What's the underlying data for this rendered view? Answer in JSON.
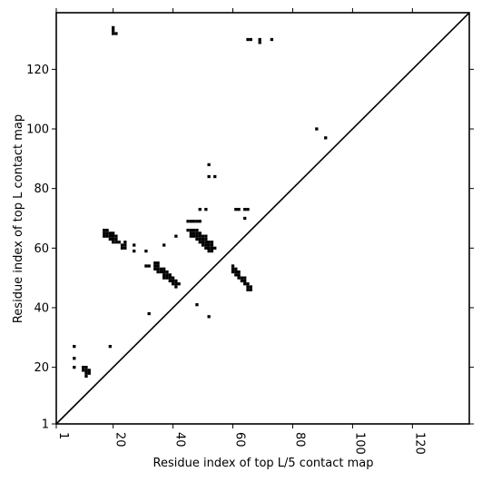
{
  "chart_data": {
    "type": "heatmap",
    "title": "",
    "xlabel": "Residue index of top L/5 contact map",
    "ylabel": "Residue index of top L contact map",
    "xlim": [
      1,
      139
    ],
    "ylim": [
      1,
      139
    ],
    "xticks": [
      "1",
      "20",
      "40",
      "60",
      "80",
      "100",
      "120"
    ],
    "yticks": [
      "1",
      "20",
      "40",
      "60",
      "80",
      "100",
      "120"
    ],
    "xtick_values": [
      1,
      20,
      40,
      60,
      80,
      100,
      120
    ],
    "ytick_values": [
      1,
      20,
      40,
      60,
      80,
      100,
      120
    ],
    "x_ticklabel_rotation": "vertical",
    "diagonal": true,
    "grid": false,
    "cell_color": "#000000",
    "contacts": [
      [
        20,
        134
      ],
      [
        20,
        133
      ],
      [
        20,
        132
      ],
      [
        21,
        132
      ],
      [
        66,
        130
      ],
      [
        65,
        130
      ],
      [
        69,
        130
      ],
      [
        69,
        129
      ],
      [
        73,
        130
      ],
      [
        88,
        100
      ],
      [
        91,
        97
      ],
      [
        52,
        88
      ],
      [
        52,
        84
      ],
      [
        54,
        84
      ],
      [
        49,
        73
      ],
      [
        51,
        73
      ],
      [
        61,
        73
      ],
      [
        62,
        73
      ],
      [
        64,
        73
      ],
      [
        65,
        73
      ],
      [
        64,
        70
      ],
      [
        45,
        69
      ],
      [
        46,
        69
      ],
      [
        47,
        69
      ],
      [
        48,
        69
      ],
      [
        49,
        69
      ],
      [
        17,
        66
      ],
      [
        18,
        66
      ],
      [
        17,
        65
      ],
      [
        18,
        65
      ],
      [
        19,
        65
      ],
      [
        20,
        65
      ],
      [
        17,
        64
      ],
      [
        18,
        64
      ],
      [
        19,
        64
      ],
      [
        20,
        64
      ],
      [
        21,
        64
      ],
      [
        19,
        63
      ],
      [
        20,
        63
      ],
      [
        21,
        63
      ],
      [
        20,
        62
      ],
      [
        21,
        62
      ],
      [
        22,
        62
      ],
      [
        23,
        61
      ],
      [
        24,
        61
      ],
      [
        24,
        62
      ],
      [
        24,
        60
      ],
      [
        23,
        60
      ],
      [
        27,
        61
      ],
      [
        27,
        59
      ],
      [
        31,
        59
      ],
      [
        45,
        66
      ],
      [
        46,
        66
      ],
      [
        47,
        66
      ],
      [
        48,
        66
      ],
      [
        46,
        65
      ],
      [
        47,
        65
      ],
      [
        48,
        65
      ],
      [
        49,
        65
      ],
      [
        46,
        64
      ],
      [
        47,
        64
      ],
      [
        48,
        64
      ],
      [
        49,
        64
      ],
      [
        50,
        64
      ],
      [
        51,
        64
      ],
      [
        48,
        63
      ],
      [
        49,
        63
      ],
      [
        50,
        63
      ],
      [
        51,
        63
      ],
      [
        49,
        62
      ],
      [
        50,
        62
      ],
      [
        51,
        62
      ],
      [
        52,
        62
      ],
      [
        53,
        62
      ],
      [
        50,
        61
      ],
      [
        51,
        61
      ],
      [
        52,
        61
      ],
      [
        53,
        61
      ],
      [
        51,
        60
      ],
      [
        52,
        60
      ],
      [
        53,
        60
      ],
      [
        54,
        60
      ],
      [
        52,
        59
      ],
      [
        53,
        59
      ],
      [
        37,
        61
      ],
      [
        41,
        64
      ],
      [
        31,
        54
      ],
      [
        32,
        54
      ],
      [
        34,
        55
      ],
      [
        35,
        55
      ],
      [
        34,
        54
      ],
      [
        35,
        54
      ],
      [
        34,
        53
      ],
      [
        35,
        53
      ],
      [
        36,
        53
      ],
      [
        37,
        53
      ],
      [
        35,
        52
      ],
      [
        36,
        52
      ],
      [
        37,
        52
      ],
      [
        38,
        52
      ],
      [
        37,
        51
      ],
      [
        38,
        51
      ],
      [
        39,
        51
      ],
      [
        37,
        50
      ],
      [
        38,
        50
      ],
      [
        39,
        50
      ],
      [
        40,
        50
      ],
      [
        39,
        49
      ],
      [
        40,
        49
      ],
      [
        41,
        49
      ],
      [
        40,
        48
      ],
      [
        41,
        48
      ],
      [
        42,
        48
      ],
      [
        41,
        47
      ],
      [
        60,
        54
      ],
      [
        60,
        53
      ],
      [
        61,
        53
      ],
      [
        60,
        52
      ],
      [
        61,
        52
      ],
      [
        62,
        52
      ],
      [
        61,
        51
      ],
      [
        62,
        51
      ],
      [
        62,
        50
      ],
      [
        63,
        50
      ],
      [
        64,
        50
      ],
      [
        63,
        49
      ],
      [
        64,
        49
      ],
      [
        64,
        48
      ],
      [
        65,
        48
      ],
      [
        65,
        47
      ],
      [
        66,
        47
      ],
      [
        65,
        46
      ],
      [
        66,
        46
      ],
      [
        32,
        38
      ],
      [
        48,
        41
      ],
      [
        52,
        37
      ],
      [
        7,
        27
      ],
      [
        19,
        27
      ],
      [
        7,
        23
      ],
      [
        7,
        20
      ],
      [
        10,
        20
      ],
      [
        11,
        20
      ],
      [
        10,
        19
      ],
      [
        11,
        19
      ],
      [
        12,
        19
      ],
      [
        11,
        18
      ],
      [
        12,
        18
      ],
      [
        11,
        17
      ]
    ]
  }
}
